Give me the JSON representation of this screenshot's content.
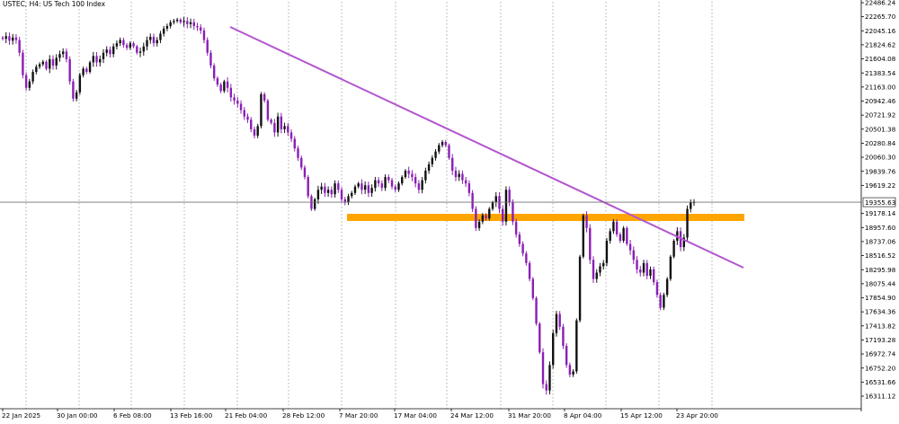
{
  "header": {
    "symbol": "USTEC",
    "timeframe": "H4",
    "description": "US Tech 100 Index",
    "title_text": "USTEC, H4:  US Tech 100 Index"
  },
  "colors": {
    "background": "#ffffff",
    "grid": "#8a8a8a",
    "bull_candle": "#111111",
    "bear_candle": "#8a1fb5",
    "neutral_candle": "#9a9a9a",
    "trendline": "#b356cf",
    "support_zone": "#ffa500",
    "price_line": "#6f6f6f",
    "axis_text": "#000000"
  },
  "chart_data": {
    "type": "candlestick",
    "title": "USTEC, H4:  US Tech 100 Index",
    "ylim": [
      16200,
      22486.24
    ],
    "y_ticks": [
      22486.24,
      22265.7,
      22045.16,
      21824.62,
      21604.08,
      21383.54,
      21163.0,
      20942.46,
      20721.92,
      20501.38,
      20280.84,
      20060.3,
      19839.76,
      19619.22,
      19178.14,
      18957.6,
      18737.06,
      18516.52,
      18295.98,
      18075.44,
      17854.9,
      17634.36,
      17413.82,
      17193.28,
      16972.74,
      16752.2,
      16531.66,
      16311.12
    ],
    "x_labels": [
      "22 Jan 2025",
      "30 Jan 00:00",
      "6 Feb 08:00",
      "13 Feb 16:00",
      "21 Feb 04:00",
      "28 Feb 12:00",
      "7 Mar 20:00",
      "17 Mar 04:00",
      "24 Mar 12:00",
      "31 Mar 20:00",
      "8 Apr 04:00",
      "15 Apr 12:00",
      "23 Apr 20:00"
    ],
    "grid": "vertical dotted",
    "current_price": 19355.63,
    "current_price_label": "19355.63",
    "closes": [
      21920,
      21960,
      21890,
      21940,
      21900,
      21700,
      21350,
      21150,
      21250,
      21400,
      21480,
      21520,
      21560,
      21450,
      21600,
      21500,
      21620,
      21680,
      21720,
      21600,
      21250,
      20980,
      21080,
      21350,
      21450,
      21400,
      21550,
      21650,
      21550,
      21600,
      21700,
      21750,
      21680,
      21800,
      21850,
      21900,
      21820,
      21780,
      21850,
      21800,
      21700,
      21720,
      21800,
      21900,
      21950,
      21850,
      21900,
      22000,
      22080,
      22120,
      22180,
      22200,
      22220,
      22180,
      22200,
      22150,
      22180,
      22120,
      22100,
      22050,
      21900,
      21700,
      21500,
      21300,
      21200,
      21100,
      21250,
      21150,
      21000,
      20950,
      20900,
      20800,
      20700,
      20650,
      20500,
      20400,
      20550,
      21050,
      20950,
      20650,
      20600,
      20450,
      20700,
      20500,
      20550,
      20450,
      20350,
      20200,
      20050,
      19900,
      19750,
      19450,
      19250,
      19400,
      19550,
      19600,
      19500,
      19550,
      19480,
      19650,
      19550,
      19400,
      19350,
      19450,
      19500,
      19600,
      19650,
      19550,
      19620,
      19500,
      19580,
      19700,
      19650,
      19580,
      19750,
      19700,
      19600,
      19550,
      19650,
      19750,
      19850,
      19800,
      19750,
      19650,
      19550,
      19700,
      19850,
      19950,
      20050,
      20150,
      20250,
      20300,
      20250,
      20050,
      19850,
      19750,
      19800,
      19700,
      19650,
      19500,
      19250,
      18950,
      19050,
      19150,
      19100,
      19250,
      19350,
      19450,
      19250,
      19050,
      19550,
      19350,
      19050,
      18850,
      18700,
      18550,
      18400,
      18150,
      17850,
      17450,
      17000,
      16500,
      16400,
      16800,
      17300,
      17600,
      17400,
      17100,
      16800,
      16650,
      16700,
      17500,
      18500,
      19150,
      18950,
      18450,
      18150,
      18250,
      18350,
      18400,
      18750,
      18900,
      19050,
      18850,
      18750,
      18950,
      18700,
      18600,
      18450,
      18300,
      18250,
      18400,
      18200,
      18300,
      18100,
      17900,
      17700,
      17900,
      18150,
      18500,
      18750,
      18900,
      18650,
      18800,
      19250,
      19350,
      19356
    ]
  }
}
